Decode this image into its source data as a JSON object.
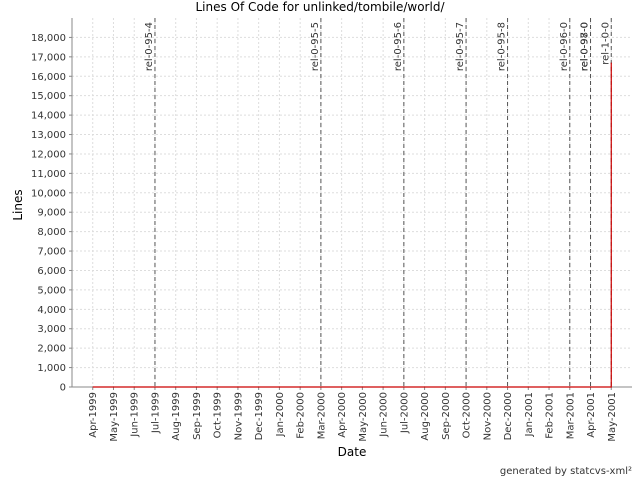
{
  "chart_data": {
    "type": "line",
    "title": "Lines Of Code for unlinked/tombile/world/",
    "x_label": "Date",
    "y_label": "Lines",
    "footer": "generated by statcvs-xml²",
    "xlim": [
      "1999-03",
      "2001-06"
    ],
    "xticks": [
      {
        "value": "1999-04",
        "label": "Apr-1999"
      },
      {
        "value": "1999-05",
        "label": "May-1999"
      },
      {
        "value": "1999-06",
        "label": "Jun-1999"
      },
      {
        "value": "1999-07",
        "label": "Jul-1999"
      },
      {
        "value": "1999-08",
        "label": "Aug-1999"
      },
      {
        "value": "1999-09",
        "label": "Sep-1999"
      },
      {
        "value": "1999-10",
        "label": "Oct-1999"
      },
      {
        "value": "1999-11",
        "label": "Nov-1999"
      },
      {
        "value": "1999-12",
        "label": "Dec-1999"
      },
      {
        "value": "2000-01",
        "label": "Jan-2000"
      },
      {
        "value": "2000-02",
        "label": "Feb-2000"
      },
      {
        "value": "2000-03",
        "label": "Mar-2000"
      },
      {
        "value": "2000-04",
        "label": "Apr-2000"
      },
      {
        "value": "2000-05",
        "label": "May-2000"
      },
      {
        "value": "2000-06",
        "label": "Jun-2000"
      },
      {
        "value": "2000-07",
        "label": "Jul-2000"
      },
      {
        "value": "2000-08",
        "label": "Aug-2000"
      },
      {
        "value": "2000-09",
        "label": "Sep-2000"
      },
      {
        "value": "2000-10",
        "label": "Oct-2000"
      },
      {
        "value": "2000-11",
        "label": "Nov-2000"
      },
      {
        "value": "2000-12",
        "label": "Dec-2000"
      },
      {
        "value": "2001-01",
        "label": "Jan-2001"
      },
      {
        "value": "2001-02",
        "label": "Feb-2001"
      },
      {
        "value": "2001-03",
        "label": "Mar-2001"
      },
      {
        "value": "2001-04",
        "label": "Apr-2001"
      },
      {
        "value": "2001-05",
        "label": "May-2001"
      }
    ],
    "ylim": [
      0,
      19000
    ],
    "yticks": [
      0,
      {
        "value": 1000,
        "label": "1,000"
      },
      {
        "value": 2000,
        "label": "2,000"
      },
      {
        "value": 3000,
        "label": "3,000"
      },
      {
        "value": 4000,
        "label": "4,000"
      },
      {
        "value": 5000,
        "label": "5,000"
      },
      {
        "value": 6000,
        "label": "6,000"
      },
      {
        "value": 7000,
        "label": "7,000"
      },
      {
        "value": 8000,
        "label": "8,000"
      },
      {
        "value": 9000,
        "label": "9,000"
      },
      {
        "value": 10000,
        "label": "10,000"
      },
      {
        "value": 11000,
        "label": "11,000"
      },
      {
        "value": 12000,
        "label": "12,000"
      },
      {
        "value": 13000,
        "label": "13,000"
      },
      {
        "value": 14000,
        "label": "14,000"
      },
      {
        "value": 15000,
        "label": "15,000"
      },
      {
        "value": 16000,
        "label": "16,000"
      },
      {
        "value": 17000,
        "label": "17,000"
      },
      {
        "value": 18000,
        "label": "18,000"
      }
    ],
    "grid": true,
    "x": [
      "1999-04",
      "2001-05",
      "2001-05"
    ],
    "series": [
      {
        "name": "Lines",
        "color": "#cc0000",
        "values": [
          0,
          0,
          16700
        ]
      }
    ],
    "annotations": [
      {
        "x": "1999-07",
        "label": "rel-0-95-4"
      },
      {
        "x": "2000-03",
        "label": "rel-0-95-5"
      },
      {
        "x": "2000-07",
        "label": "rel-0-95-6"
      },
      {
        "x": "2000-10",
        "label": "rel-0-95-7"
      },
      {
        "x": "2000-12",
        "label": "rel-0-95-8"
      },
      {
        "x": "2001-03",
        "label": "rel-0-96-0"
      },
      {
        "x": "2001-04",
        "label": "rel-0-97-0"
      },
      {
        "x": "2001-04",
        "label": "rel-0-98-0"
      },
      {
        "x": "2001-05",
        "label": "rel-1-0-0"
      }
    ]
  }
}
